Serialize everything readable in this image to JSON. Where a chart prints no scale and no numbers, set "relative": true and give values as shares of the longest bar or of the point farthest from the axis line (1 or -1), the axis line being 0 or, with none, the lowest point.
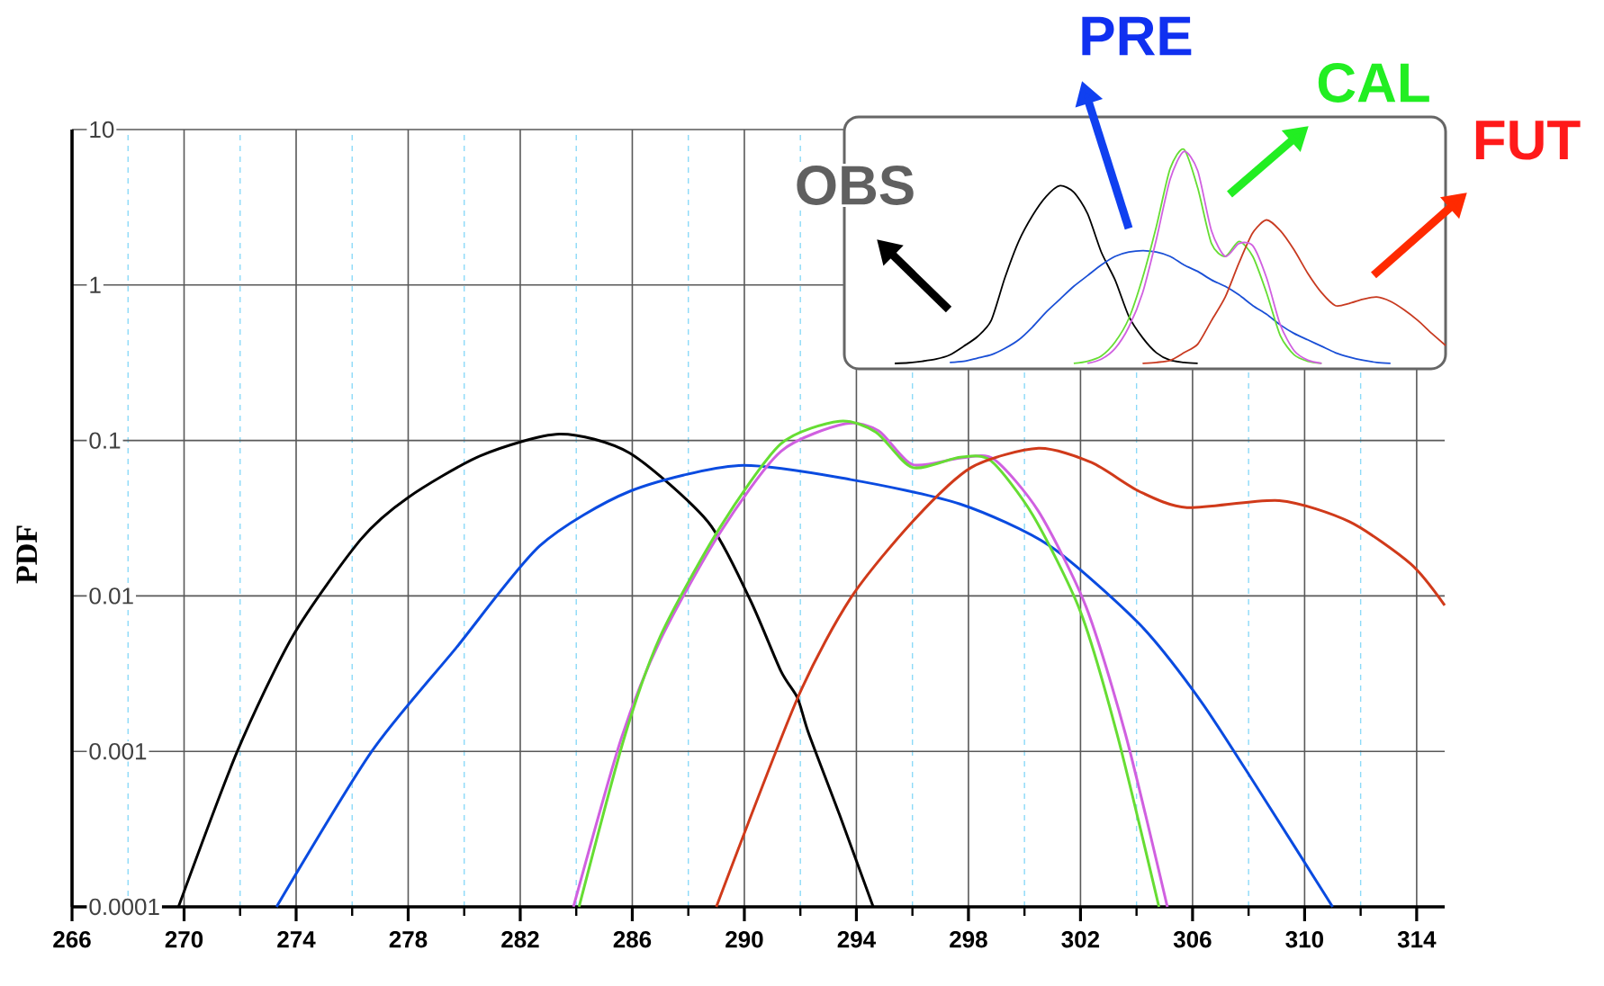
{
  "chart_data": [
    {
      "type": "line",
      "ylabel": "PDF",
      "log": "y",
      "grid": true,
      "xlim": [
        266,
        315
      ],
      "ylim": [
        0.0001,
        10
      ],
      "xticks": [
        266,
        {
          "value": 268,
          "label": null
        },
        270,
        {
          "value": 272,
          "label": null
        },
        274,
        {
          "value": 276,
          "label": null
        },
        278,
        {
          "value": 280,
          "label": null
        },
        282,
        {
          "value": 284,
          "label": null
        },
        286,
        {
          "value": 288,
          "label": null
        },
        290,
        {
          "value": 292,
          "label": null
        },
        294,
        {
          "value": 296,
          "label": null
        },
        298,
        {
          "value": 300,
          "label": null
        },
        302,
        {
          "value": 304,
          "label": null
        },
        306,
        {
          "value": 308,
          "label": null
        },
        310,
        {
          "value": 312,
          "label": null
        },
        314
      ],
      "yticks": [
        0.0001,
        0.001,
        0.01,
        0.1,
        1,
        10
      ],
      "series": [
        {
          "color": "#000000",
          "x": [
            269.8,
            271.9,
            273.9,
            276.3,
            278.0,
            280.6,
            283.4,
            285.9,
            288.7,
            290.2,
            291.3,
            291.9,
            292.3,
            293.4,
            294.6
          ],
          "values": [
            0.0001,
            0.001,
            0.0056,
            0.023,
            0.043,
            0.08,
            0.11,
            0.083,
            0.03,
            0.0095,
            0.0033,
            0.0022,
            0.0013,
            0.00039,
            0.0001
          ]
        },
        {
          "color": "#0a4be0",
          "x": [
            273.3,
            276.7,
            279.7,
            282.7,
            285.9,
            289.8,
            293.8,
            297.7,
            300.9,
            304.1,
            306.3,
            308.4,
            311.0
          ],
          "values": [
            0.0001,
            0.001,
            0.0046,
            0.021,
            0.047,
            0.069,
            0.056,
            0.039,
            0.021,
            0.0066,
            0.0021,
            0.00055,
            0.0001
          ]
        },
        {
          "color": "#d060e0",
          "x": [
            283.9,
            285.6,
            287.0,
            289.1,
            291.3,
            293.6,
            294.8,
            296.0,
            297.7,
            298.9,
            300.5,
            302.2,
            303.6,
            305.1
          ],
          "values": [
            0.0001,
            0.0012,
            0.0052,
            0.025,
            0.085,
            0.128,
            0.115,
            0.07,
            0.077,
            0.076,
            0.035,
            0.0085,
            0.0013,
            0.0001
          ]
        },
        {
          "color": "#66dd33",
          "x": [
            284.1,
            285.7,
            287.0,
            289.1,
            291.3,
            293.4,
            294.7,
            296.0,
            297.7,
            298.8,
            300.3,
            302.0,
            303.3,
            304.8
          ],
          "values": [
            0.0001,
            0.0012,
            0.0055,
            0.027,
            0.095,
            0.133,
            0.113,
            0.067,
            0.078,
            0.074,
            0.033,
            0.0079,
            0.0013,
            0.0001
          ]
        },
        {
          "color": "#d03a1a",
          "x": [
            289.0,
            291.9,
            293.8,
            296.0,
            298.1,
            300.5,
            302.4,
            304.1,
            305.8,
            309.1,
            311.6,
            313.8,
            315.0
          ],
          "values": [
            0.0001,
            0.0022,
            0.0097,
            0.03,
            0.067,
            0.089,
            0.072,
            0.047,
            0.037,
            0.041,
            0.03,
            0.016,
            0.0087
          ]
        }
      ]
    },
    {
      "type": "line",
      "relative": true,
      "categories": [
        null,
        null,
        null,
        null,
        null,
        null,
        null,
        null,
        null,
        null,
        null,
        null,
        null,
        null,
        null,
        null,
        null,
        null,
        null,
        null,
        null,
        null,
        null,
        null,
        null,
        null,
        null,
        null,
        null,
        null,
        null,
        null,
        null,
        null,
        null,
        null,
        null,
        null,
        null,
        null,
        null
      ],
      "series": [
        {
          "name": "OBS",
          "color": "#000000",
          "values": [
            0,
            0.003,
            0.01,
            0.02,
            0.04,
            0.08,
            0.125,
            0.2,
            0.4,
            0.57,
            0.69,
            0.78,
            0.83,
            0.8,
            0.7,
            0.52,
            0.39,
            0.22,
            0.12,
            0.05,
            0.015,
            0.005,
            0,
            null,
            null,
            null,
            null,
            null,
            null,
            null,
            null,
            null,
            null,
            null,
            null,
            null,
            null,
            null,
            null,
            null,
            null
          ]
        },
        {
          "name": "PRE",
          "color": "#1a4fd6",
          "values": [
            null,
            null,
            null,
            null,
            0.005,
            0.01,
            0.025,
            0.04,
            0.07,
            0.11,
            0.17,
            0.24,
            0.3,
            0.36,
            0.41,
            0.46,
            0.5,
            0.52,
            0.527,
            0.52,
            0.5,
            0.46,
            0.43,
            0.39,
            0.36,
            0.32,
            0.27,
            0.23,
            0.18,
            0.14,
            0.11,
            0.08,
            0.05,
            0.03,
            0.015,
            0.005,
            0,
            null,
            null,
            null,
            null
          ]
        },
        {
          "name": "CAL",
          "color": "#66dd33",
          "values": [
            null,
            null,
            null,
            null,
            null,
            null,
            null,
            null,
            null,
            null,
            null,
            null,
            null,
            0,
            0.01,
            0.035,
            0.1,
            0.21,
            0.4,
            0.64,
            0.91,
            1,
            0.82,
            0.56,
            0.5,
            0.57,
            0.5,
            0.33,
            0.13,
            0.04,
            0.01,
            0,
            null,
            null,
            null,
            null,
            null,
            null,
            null,
            null,
            null
          ]
        },
        {
          "name": "FUT",
          "color": "#c83a20",
          "values": [
            null,
            null,
            null,
            null,
            null,
            null,
            null,
            null,
            null,
            null,
            null,
            null,
            null,
            null,
            null,
            null,
            null,
            null,
            0,
            0.005,
            0.014,
            0.05,
            0.09,
            0.2,
            0.31,
            0.47,
            0.61,
            0.67,
            0.62,
            0.53,
            0.42,
            0.33,
            0.27,
            0.28,
            0.3,
            0.31,
            0.29,
            0.25,
            0.2,
            0.14,
            0.084
          ]
        },
        {
          "color": "#d060e0",
          "values": [
            null,
            null,
            null,
            null,
            null,
            null,
            null,
            null,
            null,
            null,
            null,
            null,
            null,
            null,
            0,
            0.02,
            0.07,
            0.17,
            0.33,
            0.58,
            0.86,
            0.99,
            0.9,
            0.62,
            0.5,
            0.56,
            0.55,
            0.4,
            0.18,
            0.06,
            0.015,
            0,
            null,
            null,
            null,
            null,
            null,
            null,
            null,
            null,
            null
          ]
        }
      ]
    }
  ]
}
